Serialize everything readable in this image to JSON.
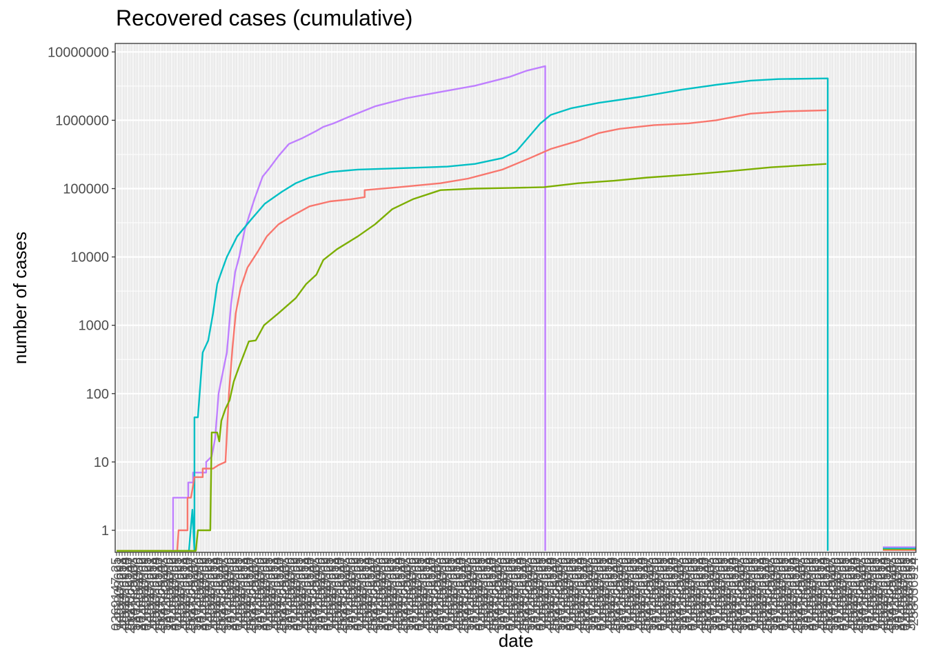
{
  "chart_data": {
    "type": "line",
    "title": "Recovered cases (cumulative)",
    "xlabel": "date",
    "ylabel": "number of cases",
    "y_scale": "log10",
    "ylim": [
      0.5,
      10000000
    ],
    "y_ticks": [
      "1",
      "10",
      "100",
      "1000",
      "10000",
      "100000",
      "1000000",
      "10000000"
    ],
    "grid": true,
    "legend": "none",
    "x_tick_labels_note": "dense overlapping rotated date labels (illegible)",
    "panel_background": "#ebebeb",
    "series": [
      {
        "color": "#bf7fff",
        "points": [
          [
            0,
            0.5
          ],
          [
            82,
            0.5
          ],
          [
            82,
            3
          ],
          [
            104,
            3
          ],
          [
            104,
            5
          ],
          [
            111,
            5
          ],
          [
            111,
            7
          ],
          [
            130,
            7
          ],
          [
            130,
            10
          ],
          [
            138,
            12
          ],
          [
            143,
            22
          ],
          [
            148,
            100
          ],
          [
            153,
            180
          ],
          [
            160,
            400
          ],
          [
            166,
            2000
          ],
          [
            172,
            6000
          ],
          [
            178,
            10000
          ],
          [
            186,
            25000
          ],
          [
            200,
            70000
          ],
          [
            212,
            150000
          ],
          [
            222,
            200000
          ],
          [
            235,
            300000
          ],
          [
            250,
            450000
          ],
          [
            270,
            550000
          ],
          [
            290,
            700000
          ],
          [
            300,
            800000
          ],
          [
            315,
            900000
          ],
          [
            335,
            1100000
          ],
          [
            375,
            1600000
          ],
          [
            420,
            2100000
          ],
          [
            470,
            2600000
          ],
          [
            520,
            3200000
          ],
          [
            570,
            4300000
          ],
          [
            595,
            5300000
          ],
          [
            622,
            6200000
          ],
          [
            622,
            0.5
          ]
        ]
      },
      {
        "color": "#00bfc4",
        "points": [
          [
            0,
            0.5
          ],
          [
            105,
            0.5
          ],
          [
            110,
            2
          ],
          [
            113,
            0.5
          ],
          [
            113,
            45
          ],
          [
            118,
            45
          ],
          [
            125,
            400
          ],
          [
            133,
            600
          ],
          [
            140,
            1500
          ],
          [
            146,
            4000
          ],
          [
            152,
            6000
          ],
          [
            160,
            10000
          ],
          [
            175,
            20000
          ],
          [
            195,
            35000
          ],
          [
            215,
            60000
          ],
          [
            240,
            90000
          ],
          [
            260,
            120000
          ],
          [
            280,
            145000
          ],
          [
            310,
            175000
          ],
          [
            350,
            190000
          ],
          [
            420,
            200000
          ],
          [
            480,
            210000
          ],
          [
            520,
            230000
          ],
          [
            560,
            280000
          ],
          [
            580,
            350000
          ],
          [
            600,
            600000
          ],
          [
            615,
            900000
          ],
          [
            630,
            1200000
          ],
          [
            660,
            1500000
          ],
          [
            700,
            1800000
          ],
          [
            760,
            2200000
          ],
          [
            820,
            2800000
          ],
          [
            870,
            3300000
          ],
          [
            920,
            3800000
          ],
          [
            960,
            4000000
          ],
          [
            1032,
            4100000
          ],
          [
            1032,
            0.5
          ]
        ]
      },
      {
        "color": "#f8766d",
        "points": [
          [
            0,
            0.5
          ],
          [
            88,
            0.5
          ],
          [
            90,
            1
          ],
          [
            103,
            1
          ],
          [
            103,
            3
          ],
          [
            108,
            3
          ],
          [
            113,
            6
          ],
          [
            125,
            6
          ],
          [
            125,
            8
          ],
          [
            140,
            8
          ],
          [
            148,
            9
          ],
          [
            158,
            10
          ],
          [
            163,
            100
          ],
          [
            168,
            450
          ],
          [
            173,
            1500
          ],
          [
            180,
            3500
          ],
          [
            190,
            7000
          ],
          [
            205,
            12000
          ],
          [
            218,
            20000
          ],
          [
            235,
            30000
          ],
          [
            255,
            40000
          ],
          [
            280,
            55000
          ],
          [
            310,
            65000
          ],
          [
            340,
            70000
          ],
          [
            360,
            75000
          ],
          [
            360,
            95000
          ],
          [
            410,
            105000
          ],
          [
            470,
            120000
          ],
          [
            510,
            140000
          ],
          [
            560,
            190000
          ],
          [
            600,
            280000
          ],
          [
            630,
            380000
          ],
          [
            670,
            500000
          ],
          [
            700,
            650000
          ],
          [
            730,
            750000
          ],
          [
            780,
            850000
          ],
          [
            830,
            900000
          ],
          [
            870,
            1000000
          ],
          [
            920,
            1250000
          ],
          [
            970,
            1350000
          ],
          [
            1030,
            1400000
          ]
        ]
      },
      {
        "color": "#7cae00",
        "points": [
          [
            0,
            0.5
          ],
          [
            115,
            0.5
          ],
          [
            118,
            1
          ],
          [
            136,
            1
          ],
          [
            138,
            27
          ],
          [
            146,
            27
          ],
          [
            149,
            20
          ],
          [
            152,
            40
          ],
          [
            158,
            60
          ],
          [
            164,
            80
          ],
          [
            170,
            150
          ],
          [
            178,
            250
          ],
          [
            185,
            380
          ],
          [
            192,
            580
          ],
          [
            202,
            600
          ],
          [
            214,
            1000
          ],
          [
            235,
            1500
          ],
          [
            260,
            2500
          ],
          [
            275,
            4000
          ],
          [
            290,
            5500
          ],
          [
            300,
            9000
          ],
          [
            320,
            13000
          ],
          [
            350,
            20000
          ],
          [
            375,
            30000
          ],
          [
            400,
            50000
          ],
          [
            430,
            70000
          ],
          [
            470,
            95000
          ],
          [
            520,
            100000
          ],
          [
            570,
            102000
          ],
          [
            620,
            105000
          ],
          [
            670,
            120000
          ],
          [
            720,
            130000
          ],
          [
            770,
            145000
          ],
          [
            830,
            160000
          ],
          [
            890,
            180000
          ],
          [
            950,
            205000
          ],
          [
            1030,
            230000
          ]
        ]
      }
    ],
    "flat_tail": {
      "x_range": [
        1112,
        1160
      ],
      "colors": [
        "#f8766d",
        "#7cae00",
        "#00bfc4",
        "#bf7fff"
      ]
    }
  }
}
